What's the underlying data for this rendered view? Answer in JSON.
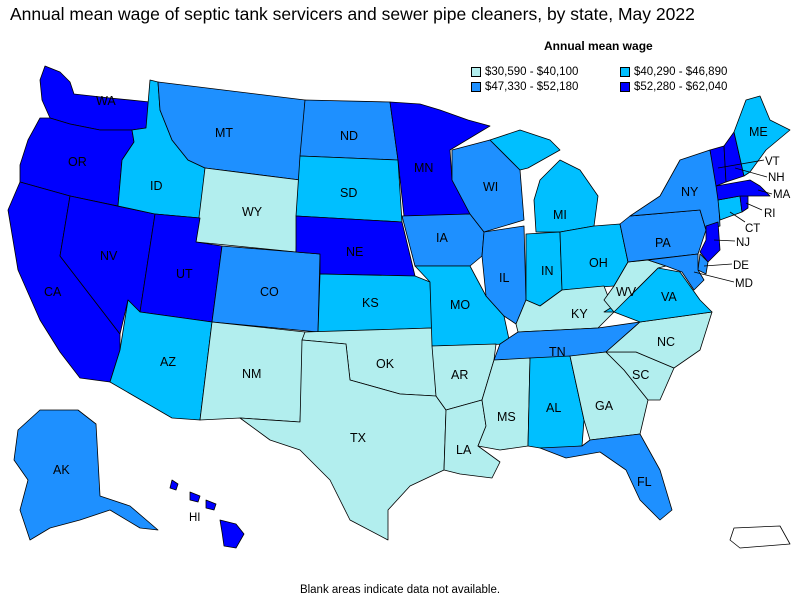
{
  "title": "Annual mean wage of septic tank servicers and sewer pipe cleaners, by state, May 2022",
  "legend": {
    "title": "Annual mean wage",
    "items": [
      {
        "label": "$30,590 - $40,100",
        "color": "#b2eeee"
      },
      {
        "label": "$40,290 - $46,890",
        "color": "#00bfff"
      },
      {
        "label": "$47,330 - $52,180",
        "color": "#1e90ff"
      },
      {
        "label": "$52,280 - $62,040",
        "color": "#0000ff"
      }
    ]
  },
  "footnote": "Blank areas indicate data not available.",
  "states": {
    "WA": {
      "label": "WA",
      "color": "#0000ff"
    },
    "OR": {
      "label": "OR",
      "color": "#0000ff"
    },
    "CA": {
      "label": "CA",
      "color": "#0000ff"
    },
    "NV": {
      "label": "NV",
      "color": "#0000ff"
    },
    "ID": {
      "label": "ID",
      "color": "#00bfff"
    },
    "MT": {
      "label": "MT",
      "color": "#1e90ff"
    },
    "WY": {
      "label": "WY",
      "color": "#b2eeee"
    },
    "UT": {
      "label": "UT",
      "color": "#0000ff"
    },
    "CO": {
      "label": "CO",
      "color": "#1e90ff"
    },
    "AZ": {
      "label": "AZ",
      "color": "#00bfff"
    },
    "NM": {
      "label": "NM",
      "color": "#b2eeee"
    },
    "ND": {
      "label": "ND",
      "color": "#1e90ff"
    },
    "SD": {
      "label": "SD",
      "color": "#00bfff"
    },
    "NE": {
      "label": "NE",
      "color": "#0000ff"
    },
    "KS": {
      "label": "KS",
      "color": "#00bfff"
    },
    "OK": {
      "label": "OK",
      "color": "#b2eeee"
    },
    "TX": {
      "label": "TX",
      "color": "#b2eeee"
    },
    "MN": {
      "label": "MN",
      "color": "#0000ff"
    },
    "IA": {
      "label": "IA",
      "color": "#1e90ff"
    },
    "MO": {
      "label": "MO",
      "color": "#00bfff"
    },
    "AR": {
      "label": "AR",
      "color": "#b2eeee"
    },
    "LA": {
      "label": "LA",
      "color": "#b2eeee"
    },
    "WI": {
      "label": "WI",
      "color": "#1e90ff"
    },
    "IL": {
      "label": "IL",
      "color": "#1e90ff"
    },
    "MI": {
      "label": "MI",
      "color": "#00bfff"
    },
    "IN": {
      "label": "IN",
      "color": "#00bfff"
    },
    "OH": {
      "label": "OH",
      "color": "#00bfff"
    },
    "KY": {
      "label": "KY",
      "color": "#b2eeee"
    },
    "TN": {
      "label": "TN",
      "color": "#1e90ff"
    },
    "MS": {
      "label": "MS",
      "color": "#b2eeee"
    },
    "AL": {
      "label": "AL",
      "color": "#00bfff"
    },
    "GA": {
      "label": "GA",
      "color": "#b2eeee"
    },
    "FL": {
      "label": "FL",
      "color": "#1e90ff"
    },
    "SC": {
      "label": "SC",
      "color": "#b2eeee"
    },
    "NC": {
      "label": "NC",
      "color": "#b2eeee"
    },
    "VA": {
      "label": "VA",
      "color": "#00bfff"
    },
    "WV": {
      "label": "WV",
      "color": "#b2eeee"
    },
    "PA": {
      "label": "PA",
      "color": "#1e90ff"
    },
    "NY": {
      "label": "NY",
      "color": "#1e90ff"
    },
    "VT": {
      "label": "VT",
      "color": "#0000ff"
    },
    "NH": {
      "label": "NH",
      "color": "#0000ff"
    },
    "ME": {
      "label": "ME",
      "color": "#00bfff"
    },
    "MA": {
      "label": "MA",
      "color": "#0000ff"
    },
    "RI": {
      "label": "RI",
      "color": "#0000ff"
    },
    "CT": {
      "label": "CT",
      "color": "#00bfff"
    },
    "NJ": {
      "label": "NJ",
      "color": "#0000ff"
    },
    "DE": {
      "label": "DE",
      "color": "#1e90ff"
    },
    "MD": {
      "label": "MD",
      "color": "#1e90ff"
    },
    "AK": {
      "label": "AK",
      "color": "#1e90ff"
    },
    "HI": {
      "label": "HI",
      "color": "#0000ff"
    },
    "PR": {
      "color": "#ffffff"
    }
  }
}
